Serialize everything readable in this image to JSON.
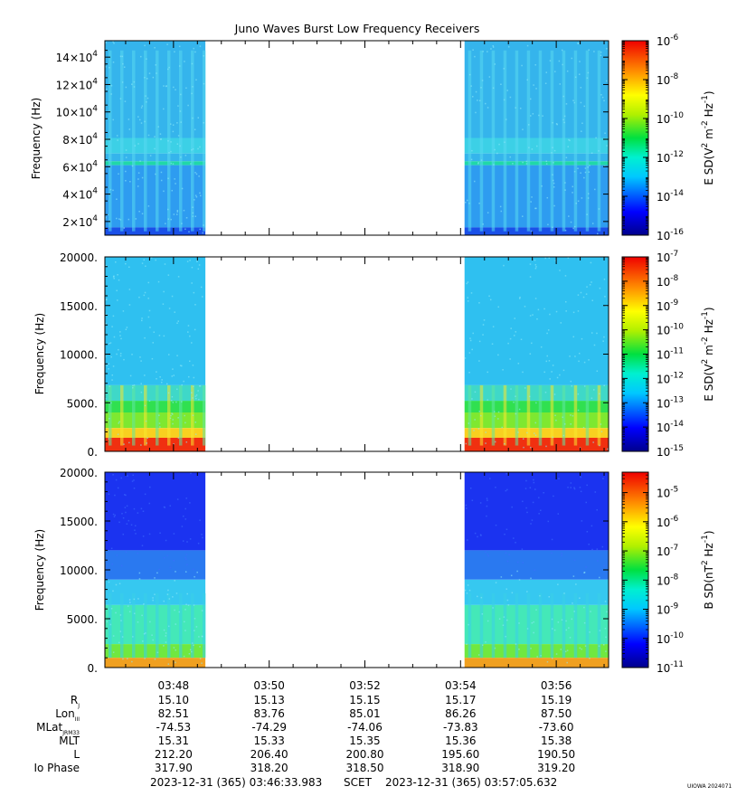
{
  "chart_data": [
    {
      "type": "heatmap",
      "title": "Juno Waves Burst Low Frequency Receivers",
      "ylabel": "Frequency (Hz)",
      "ylim": [
        10000,
        152000
      ],
      "yticks": [
        {
          "value": 20000,
          "mant": "2",
          "exp": "4"
        },
        {
          "value": 40000,
          "mant": "4",
          "exp": "4"
        },
        {
          "value": 60000,
          "mant": "6",
          "exp": "4"
        },
        {
          "value": 80000,
          "mant": "8",
          "exp": "4"
        },
        {
          "value": 100000,
          "mant": "10",
          "exp": "4"
        },
        {
          "value": 120000,
          "mant": "12",
          "exp": "4"
        },
        {
          "value": 140000,
          "mant": "14",
          "exp": "4"
        }
      ],
      "colorbar": {
        "label_base": "E SD(V",
        "label_parts": [
          "2",
          " m",
          "-2",
          " Hz",
          "-1",
          ")"
        ],
        "log_min": -16,
        "log_max": -6,
        "ticks": [
          -16,
          -14,
          -12,
          -10,
          -8,
          -6
        ],
        "scale": "log"
      },
      "data_gap": [
        "03:48:40",
        "03:54:05"
      ]
    },
    {
      "type": "heatmap",
      "ylabel": "Frequency (Hz)",
      "ylim": [
        0,
        20000
      ],
      "yticks": [
        "0.",
        "5000.",
        "10000.",
        "15000.",
        "20000."
      ],
      "colorbar": {
        "label_base": "E SD(V",
        "label_parts": [
          "2",
          " m",
          "-2",
          " Hz",
          "-1",
          ")"
        ],
        "log_min": -15,
        "log_max": -7,
        "ticks": [
          -15,
          -14,
          -13,
          -12,
          -11,
          -10,
          -9,
          -8,
          -7
        ],
        "scale": "log"
      },
      "data_gap": [
        "03:48:40",
        "03:54:05"
      ]
    },
    {
      "type": "heatmap",
      "ylabel": "Frequency (Hz)",
      "ylim": [
        0,
        20000
      ],
      "yticks": [
        "0.",
        "5000.",
        "10000.",
        "15000.",
        "20000."
      ],
      "colorbar": {
        "label_base": "B SD(nT",
        "label_parts": [
          "2",
          " Hz",
          "-1",
          ")"
        ],
        "log_min": -11,
        "log_max": -4.3,
        "ticks": [
          -11,
          -10,
          -9,
          -8,
          -7,
          -6,
          -5
        ],
        "scale": "log"
      },
      "data_gap": [
        "03:48:40",
        "03:54:05"
      ]
    }
  ],
  "x_axis": {
    "time_range": [
      "03:46:33.983",
      "03:57:05.632"
    ],
    "tick_labels": [
      "03:48",
      "03:50",
      "03:52",
      "03:54",
      "03:56"
    ]
  },
  "ephemeris": {
    "rows": [
      {
        "label": "R",
        "sub": "J",
        "values": [
          "15.10",
          "15.13",
          "15.15",
          "15.17",
          "15.19"
        ]
      },
      {
        "label": "Lon",
        "sub": "III",
        "values": [
          "82.51",
          "83.76",
          "85.01",
          "86.26",
          "87.50"
        ]
      },
      {
        "label": "MLat",
        "sub": "JRM33",
        "values": [
          "-74.53",
          "-74.29",
          "-74.06",
          "-73.83",
          "-73.60"
        ]
      },
      {
        "label": "MLT",
        "sub": "",
        "values": [
          "15.31",
          "15.33",
          "15.35",
          "15.36",
          "15.38"
        ]
      },
      {
        "label": "L",
        "sub": "",
        "values": [
          "212.20",
          "206.40",
          "200.80",
          "195.60",
          "190.50"
        ]
      },
      {
        "label": "Io Phase",
        "sub": "",
        "values": [
          "317.90",
          "318.20",
          "318.50",
          "318.90",
          "319.20"
        ]
      }
    ]
  },
  "footer": {
    "start": "2023-12-31 (365) 03:46:33.983",
    "frame": "SCET",
    "end": "2023-12-31 (365) 03:57:05.632",
    "stamp": "UIOWA 2024071"
  }
}
